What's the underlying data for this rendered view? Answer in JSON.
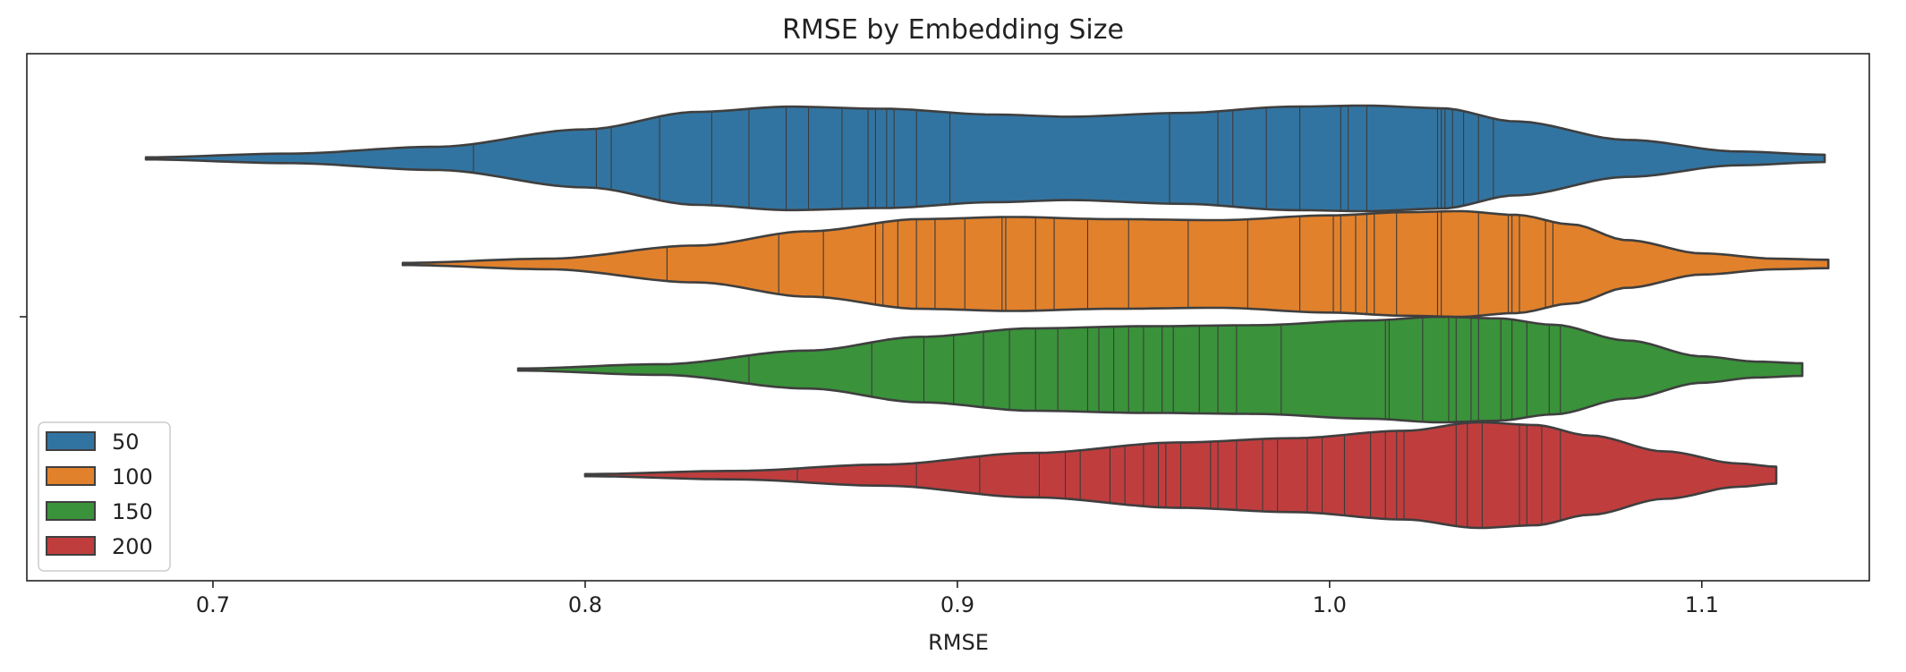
{
  "chart_data": {
    "type": "violin",
    "title": "RMSE by Embedding Size",
    "xlabel": "RMSE",
    "ylabel": "",
    "xlim": [
      0.65,
      1.145
    ],
    "xticks": [
      0.7,
      0.8,
      0.9,
      1.0,
      1.1
    ],
    "xtick_labels": [
      "0.7",
      "0.8",
      "0.9",
      "1.0",
      "1.1"
    ],
    "orientation": "horizontal",
    "inner": "stick",
    "legend": {
      "placement": "lower-left",
      "entries": [
        "50",
        "100",
        "150",
        "200"
      ]
    },
    "series": [
      {
        "name": "50",
        "color": "#3274a1",
        "min": 0.682,
        "max": 1.133,
        "density": [
          [
            0.682,
            0.02
          ],
          [
            0.72,
            0.09
          ],
          [
            0.76,
            0.22
          ],
          [
            0.8,
            0.55
          ],
          [
            0.83,
            0.88
          ],
          [
            0.855,
            0.98
          ],
          [
            0.88,
            0.94
          ],
          [
            0.91,
            0.83
          ],
          [
            0.93,
            0.79
          ],
          [
            0.96,
            0.86
          ],
          [
            0.99,
            0.98
          ],
          [
            1.01,
            1.0
          ],
          [
            1.03,
            0.95
          ],
          [
            1.05,
            0.7
          ],
          [
            1.08,
            0.35
          ],
          [
            1.11,
            0.13
          ],
          [
            1.133,
            0.07
          ]
        ],
        "points": [
          0.77,
          0.803,
          0.807,
          0.82,
          0.834,
          0.844,
          0.854,
          0.86,
          0.869,
          0.876,
          0.878,
          0.881,
          0.883,
          0.889,
          0.898,
          0.957,
          0.97,
          0.974,
          0.983,
          0.992,
          1.003,
          1.005,
          1.01,
          1.029,
          1.03,
          1.031,
          1.033,
          1.036,
          1.04,
          1.044
        ]
      },
      {
        "name": "100",
        "color": "#e1812c",
        "min": 0.751,
        "max": 1.134,
        "density": [
          [
            0.751,
            0.02
          ],
          [
            0.79,
            0.1
          ],
          [
            0.83,
            0.35
          ],
          [
            0.86,
            0.62
          ],
          [
            0.89,
            0.85
          ],
          [
            0.915,
            0.89
          ],
          [
            0.94,
            0.85
          ],
          [
            0.97,
            0.83
          ],
          [
            1.0,
            0.92
          ],
          [
            1.02,
            0.98
          ],
          [
            1.035,
            1.0
          ],
          [
            1.05,
            0.93
          ],
          [
            1.065,
            0.75
          ],
          [
            1.08,
            0.45
          ],
          [
            1.1,
            0.2
          ],
          [
            1.12,
            0.1
          ],
          [
            1.134,
            0.08
          ]
        ],
        "points": [
          0.822,
          0.852,
          0.864,
          0.878,
          0.88,
          0.884,
          0.889,
          0.894,
          0.902,
          0.912,
          0.913,
          0.921,
          0.926,
          0.935,
          0.946,
          0.962,
          0.978,
          0.992,
          1.001,
          1.003,
          1.007,
          1.01,
          1.012,
          1.018,
          1.029,
          1.03,
          1.04,
          1.048,
          1.049,
          1.051,
          1.058,
          1.06
        ]
      },
      {
        "name": "150",
        "color": "#3a923a",
        "min": 0.782,
        "max": 1.127,
        "density": [
          [
            0.782,
            0.02
          ],
          [
            0.82,
            0.1
          ],
          [
            0.86,
            0.36
          ],
          [
            0.89,
            0.62
          ],
          [
            0.92,
            0.78
          ],
          [
            0.95,
            0.82
          ],
          [
            0.98,
            0.84
          ],
          [
            1.01,
            0.93
          ],
          [
            1.03,
            1.0
          ],
          [
            1.045,
            0.97
          ],
          [
            1.06,
            0.85
          ],
          [
            1.08,
            0.55
          ],
          [
            1.1,
            0.25
          ],
          [
            1.115,
            0.15
          ],
          [
            1.127,
            0.12
          ]
        ],
        "points": [
          0.844,
          0.877,
          0.891,
          0.899,
          0.907,
          0.914,
          0.921,
          0.927,
          0.935,
          0.938,
          0.942,
          0.946,
          0.95,
          0.955,
          0.958,
          0.965,
          0.97,
          0.975,
          0.987,
          1.015,
          1.016,
          1.025,
          1.032,
          1.034,
          1.038,
          1.04,
          1.046,
          1.049,
          1.053,
          1.059,
          1.062
        ]
      },
      {
        "name": "200",
        "color": "#c03d3e",
        "min": 0.8,
        "max": 1.12,
        "density": [
          [
            0.8,
            0.02
          ],
          [
            0.84,
            0.08
          ],
          [
            0.88,
            0.2
          ],
          [
            0.92,
            0.42
          ],
          [
            0.96,
            0.62
          ],
          [
            0.99,
            0.7
          ],
          [
            1.02,
            0.84
          ],
          [
            1.04,
            1.0
          ],
          [
            1.055,
            0.95
          ],
          [
            1.07,
            0.75
          ],
          [
            1.09,
            0.45
          ],
          [
            1.11,
            0.22
          ],
          [
            1.12,
            0.16
          ]
        ],
        "points": [
          0.857,
          0.889,
          0.906,
          0.922,
          0.929,
          0.933,
          0.941,
          0.945,
          0.95,
          0.954,
          0.956,
          0.96,
          0.968,
          0.97,
          0.975,
          0.982,
          0.986,
          0.994,
          0.998,
          1.004,
          1.011,
          1.015,
          1.018,
          1.02,
          1.034,
          1.037,
          1.041,
          1.051,
          1.053,
          1.057,
          1.062
        ]
      }
    ]
  }
}
